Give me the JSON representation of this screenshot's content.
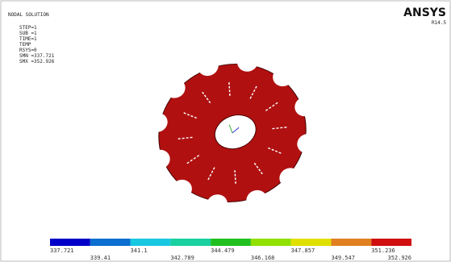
{
  "header": {
    "title": "NODAL SOLUTION",
    "lines": [
      "STEP=1",
      "SUB =1",
      "TIME=1",
      "TEMP",
      "RSYS=0",
      "SMN =337.721",
      "SMX =352.926"
    ]
  },
  "brand": {
    "name": "ANSYS",
    "version": "R14.5"
  },
  "legend": {
    "labels": [
      "337.721",
      "339.41",
      "341.1",
      "342.789",
      "344.479",
      "346.168",
      "347.857",
      "349.547",
      "351.236",
      "352.926"
    ]
  }
}
